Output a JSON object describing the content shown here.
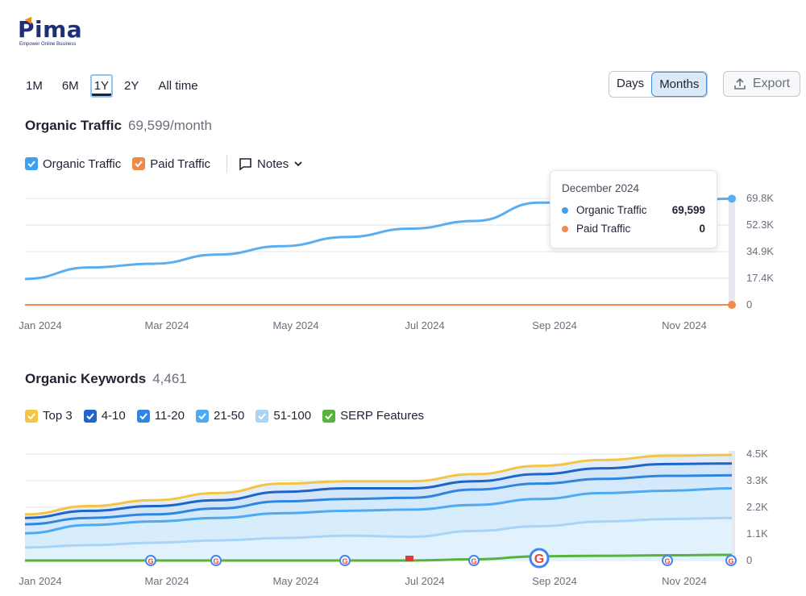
{
  "brand": {
    "name": "Pima",
    "tagline": "Empower Online Business"
  },
  "toolbar": {
    "ranges": [
      "1M",
      "6M",
      "1Y",
      "2Y",
      "All time"
    ],
    "active_range": "1Y",
    "granularity": [
      "Days",
      "Months"
    ],
    "active_granularity": "Months",
    "export_label": "Export"
  },
  "colors": {
    "organic": "#5aaef0",
    "paid": "#f08a4b",
    "top3": "#f4c542",
    "k4_10": "#1f64c7",
    "k11_20": "#2f86e0",
    "k21_50": "#4eaaf2",
    "k51_100": "#a8d4f8",
    "serp": "#58b33b"
  },
  "traffic": {
    "title": "Organic Traffic",
    "value": "69,599/month",
    "legend": {
      "organic": "Organic Traffic",
      "paid": "Paid Traffic",
      "notes": "Notes"
    },
    "tooltip": {
      "date": "December 2024",
      "organic_label": "Organic Traffic",
      "organic_value": "69,599",
      "paid_label": "Paid Traffic",
      "paid_value": "0"
    }
  },
  "keywords": {
    "title": "Organic Keywords",
    "value": "4,461",
    "legend": [
      "Top 3",
      "4-10",
      "11-20",
      "21-50",
      "51-100",
      "SERP Features"
    ]
  },
  "x_ticks": [
    "Jan 2024",
    "Mar 2024",
    "May 2024",
    "Jul 2024",
    "Sep 2024",
    "Nov 2024"
  ],
  "chart_data": [
    {
      "type": "line",
      "title": "Organic Traffic",
      "x": [
        "Jan 2024",
        "Feb 2024",
        "Mar 2024",
        "Apr 2024",
        "May 2024",
        "Jun 2024",
        "Jul 2024",
        "Aug 2024",
        "Sep 2024",
        "Oct 2024",
        "Nov 2024",
        "Dec 2024"
      ],
      "y_ticks": [
        "0",
        "17.4K",
        "34.9K",
        "52.3K",
        "69.8K"
      ],
      "ylim": [
        0,
        69800
      ],
      "series": [
        {
          "name": "Organic Traffic",
          "values": [
            17000,
            24500,
            27000,
            33000,
            38500,
            44500,
            50000,
            55000,
            67000,
            67500,
            68000,
            69599
          ]
        },
        {
          "name": "Paid Traffic",
          "values": [
            0,
            0,
            0,
            0,
            0,
            0,
            0,
            0,
            0,
            0,
            0,
            0
          ]
        }
      ]
    },
    {
      "type": "area",
      "title": "Organic Keywords",
      "x": [
        "Jan 2024",
        "Feb 2024",
        "Mar 2024",
        "Apr 2024",
        "May 2024",
        "Jun 2024",
        "Jul 2024",
        "Aug 2024",
        "Sep 2024",
        "Oct 2024",
        "Nov 2024",
        "Dec 2024"
      ],
      "y_ticks": [
        "0",
        "1.1K",
        "2.2K",
        "3.3K",
        "4.5K"
      ],
      "ylim": [
        0,
        4500
      ],
      "series": [
        {
          "name": "Top 3",
          "values": [
            1950,
            2300,
            2550,
            2850,
            3250,
            3350,
            3350,
            3650,
            4000,
            4250,
            4430,
            4461
          ]
        },
        {
          "name": "4-10",
          "values": [
            1800,
            2100,
            2300,
            2550,
            2900,
            3050,
            3050,
            3350,
            3650,
            3900,
            4080,
            4100
          ]
        },
        {
          "name": "11-20",
          "values": [
            1530,
            1800,
            1950,
            2200,
            2500,
            2600,
            2650,
            3000,
            3250,
            3450,
            3580,
            3600
          ]
        },
        {
          "name": "21-50",
          "values": [
            1150,
            1500,
            1650,
            1800,
            2000,
            2100,
            2150,
            2350,
            2600,
            2850,
            2950,
            3050
          ]
        },
        {
          "name": "51-100",
          "values": [
            550,
            650,
            750,
            850,
            950,
            1050,
            1000,
            1250,
            1450,
            1650,
            1750,
            1800
          ]
        },
        {
          "name": "SERP Features",
          "values": [
            0,
            0,
            0,
            0,
            0,
            0,
            0,
            50,
            180,
            200,
            220,
            240
          ]
        }
      ]
    }
  ]
}
